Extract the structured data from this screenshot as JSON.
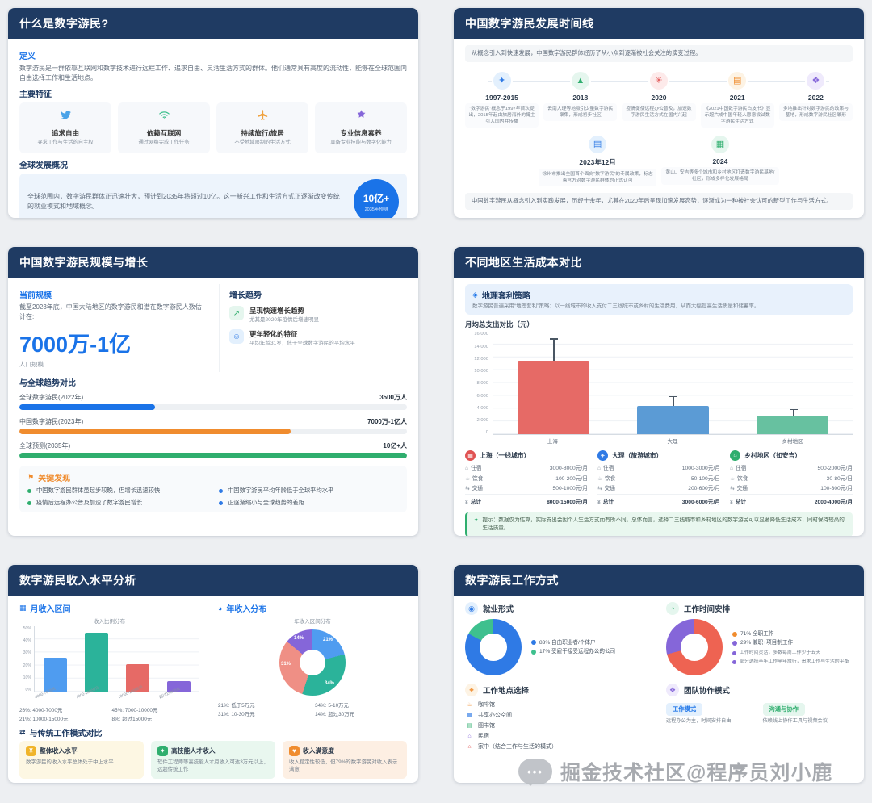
{
  "watermark": {
    "text": "掘金技术社区@程序员刘小鹿"
  },
  "panel_what": {
    "title": "什么是数字游民?",
    "definition_label": "定义",
    "definition_text": "数字游民是一群依靠互联网和数字技术进行远程工作、追求自由、灵活生活方式的群体。他们通常具有高度的流动性，能够在全球范围内自由选择工作和生活地点。",
    "features_label": "主要特征",
    "features": [
      {
        "title": "追求自由",
        "desc": "寻求工作与生活的自主权"
      },
      {
        "title": "依赖互联网",
        "desc": "通过网络完成工作任务"
      },
      {
        "title": "持续旅行/旅居",
        "desc": "不受地域限制的生活方式"
      },
      {
        "title": "专业信息素养",
        "desc": "具备专业技能与数字化能力"
      }
    ],
    "global_label": "全球发展概况",
    "global_text": "全球范围内，数字游民群体正迅速壮大，预计到2035年将超过10亿。这一新兴工作和生活方式正逐渐改变传统的就业模式和地域概念。",
    "badge_value": "10亿+",
    "badge_caption": "2035年预测"
  },
  "panel_timeline": {
    "title": "中国数字游民发展时间线",
    "intro": "从概念引入到快速发展，中国数字游民群体经历了从小众到逐渐被社会关注的演变过程。",
    "events": [
      {
        "year": "1997-2015",
        "desc": "“数字游民”概念于1997年首次提出，2015年起由旅居海外的博主引入国内并传播"
      },
      {
        "year": "2018",
        "desc": "云南大理等地吸引少量数字游民聚集，形成初步社区"
      },
      {
        "year": "2020",
        "desc": "疫情促使远程办公普及，加速数字游民生活方式在国内兴起"
      },
      {
        "year": "2021",
        "desc": "《2021中国数字游民白皮书》显示超六成中国年轻人愿意尝试数字游民生活方式"
      },
      {
        "year": "2022",
        "desc": "多地推出针对数字游民的政策与基地，形成数字游民社区雏形"
      }
    ],
    "events2": [
      {
        "year": "2023年12月",
        "desc": "徐州市推出全国首个面向“数字游民”的专属政策，标志着官方对数字游民群体的正式认可"
      },
      {
        "year": "2024",
        "desc": "黄山、安吉等多个城市和乡村地区打造数字游民基地/社区，形成多样化发展格局"
      }
    ],
    "summary": "中国数字游民从概念引入到实践发展，历经十余年，尤其在2020年后呈现加速发展态势，逐渐成为一种被社会认可的新型工作与生活方式。"
  },
  "panel_scale": {
    "title": "中国数字游民规模与增长",
    "current_label": "当前规模",
    "current_text": "截至2023年底，中国大陆地区的数字游民和潜在数字游民人数估计在:",
    "big_number": "7000万-1亿",
    "big_caption": "人口规模",
    "growth_label": "增长趋势",
    "growth_items": [
      {
        "title": "呈现快速增长趋势",
        "desc": "尤其是2020年疫情后增速明显"
      },
      {
        "title": "更年轻化的特征",
        "desc": "平均年龄31岁，低于全球数字游民的平均水平"
      }
    ],
    "compare_label": "与全球趋势对比",
    "findings_label": "关键发现",
    "findings": [
      "中国数字游民群体虽起步较晚，但增长迅速较快",
      "中国数字游民平均年龄低于全球平均水平",
      "疫情后远程办公普及加速了数字游民增长",
      "正逐渐缩小与全球趋势的差距"
    ]
  },
  "panel_cost": {
    "title": "不同地区生活成本对比",
    "strategy_label": "地理套利策略",
    "strategy_text": "数字游民普遍采用“地理套利”策略：以一线城市的收入支付二三线城市或乡村的生活费用，从而大幅提高生活质量和储蓄率。",
    "cities": [
      {
        "name": "上海（一线城市）",
        "rows": [
          [
            "住宿",
            "3000-8000元/月"
          ],
          [
            "饮食",
            "100-200元/日"
          ],
          [
            "交通",
            "500-1000元/月"
          ],
          [
            "总计",
            "8000-15000元/月"
          ]
        ]
      },
      {
        "name": "大理（旅游城市）",
        "rows": [
          [
            "住宿",
            "1000-3000元/月"
          ],
          [
            "饮食",
            "50-100元/日"
          ],
          [
            "交通",
            "200-600元/月"
          ],
          [
            "总计",
            "3000-6000元/月"
          ]
        ]
      },
      {
        "name": "乡村地区（如安吉）",
        "rows": [
          [
            "住宿",
            "500-2000元/月"
          ],
          [
            "饮食",
            "30-80元/日"
          ],
          [
            "交通",
            "100-300元/月"
          ],
          [
            "总计",
            "2000-4000元/月"
          ]
        ]
      }
    ],
    "tip": "提示：数据仅为估算，实际支出会因个人生活方式而有所不同。总体而言，选择二三线城市和乡村地区的数字游民可以显著降低生活成本，同时保持较高的生活质量。"
  },
  "panel_income": {
    "title": "数字游民收入水平分析",
    "monthly_label": "月收入区间",
    "monthly_legend": [
      "26%: 4000-7000元",
      "45%: 7000-10000元",
      "21%: 10000-15000元",
      "8%: 超过15000元"
    ],
    "annual_label": "年收入分布",
    "annual_legend": [
      "21%: 低于5万元",
      "34%: 5-10万元",
      "31%: 10-30万元",
      "14%: 超过30万元"
    ],
    "compare_label": "与传统工作模式对比",
    "compare_cards": [
      {
        "title": "整体收入水平",
        "desc": "数字游民的收入水平总体处于中上水平"
      },
      {
        "title": "高技能人才收入",
        "desc": "软件工程师等高技能人才月收入可达3万元以上，远超传统工作"
      },
      {
        "title": "收入满意度",
        "desc": "收入稳定性较低，但79%的数字游民对收入表示满意"
      }
    ]
  },
  "panel_work": {
    "title": "数字游民工作方式",
    "employment_label": "就业形式",
    "employment_legend": [
      "83% 自由职业者/个体户",
      "17% 受雇于接受远程办公的公司"
    ],
    "time_label": "工作时间安排",
    "time_legend": [
      "71% 全职工作",
      "29% 兼职+项目制工作"
    ],
    "time_notes": [
      "工作时间灵活，多数每周工作少于五天",
      "部分选择半年工作半年旅行，追求工作与生活的平衡"
    ],
    "location_label": "工作地点选择",
    "locations": [
      "咖啡馆",
      "共享办公空间",
      "图书馆",
      "民宿",
      "家中（结合工作与生活的模式）"
    ],
    "team_label": "团队协作模式",
    "team_items": [
      {
        "tag": "工作模式",
        "desc": "远程办公为主，时间安排自由"
      },
      {
        "tag": "沟通与协作",
        "desc": "依赖线上协作工具与视频会议"
      }
    ]
  },
  "chart_data": [
    {
      "type": "bar",
      "orientation": "horizontal",
      "title": "与全球趋势对比",
      "categories": [
        "全球数字游民(2022年)",
        "中国数字游民(2023年)",
        "全球预测(2035年)"
      ],
      "values_text": [
        "3500万人",
        "7000万-1亿人",
        "10亿+人"
      ],
      "pct": [
        35,
        70,
        100
      ],
      "colors": [
        "#1a73e8",
        "#f08c2e",
        "#2fae6e"
      ]
    },
    {
      "type": "bar",
      "title": "月均总支出对比（元）",
      "categories": [
        "上海",
        "大理",
        "乡村地区"
      ],
      "values": [
        11500,
        4500,
        3000
      ],
      "error_high": [
        15000,
        6000,
        4000
      ],
      "ylim": [
        0,
        16000
      ],
      "ylabel": "元",
      "colors": [
        "#e66a66",
        "#5b9bd5",
        "#67c1a0"
      ],
      "y_ticks": [
        "16,000",
        "14,000",
        "12,000",
        "10,000",
        "8,000",
        "6,000",
        "4,000",
        "2,000",
        "0"
      ]
    },
    {
      "type": "bar",
      "title": "收入比例分布",
      "categories": [
        "4000-7000元",
        "7000-10000元",
        "10000-15000元",
        "超过15000元"
      ],
      "values": [
        26,
        45,
        21,
        8
      ],
      "ylim": [
        0,
        50
      ],
      "ylabel": "%",
      "colors": [
        "#4f9cf0",
        "#2bb39a",
        "#e66a66",
        "#8566d9"
      ],
      "y_ticks": [
        "50%",
        "40%",
        "30%",
        "20%",
        "10%",
        "0%"
      ]
    },
    {
      "type": "pie",
      "title": "年收入区间分布",
      "labels": [
        "低于5万元",
        "5-10万元",
        "10-30万元",
        "超过30万元"
      ],
      "values": [
        21,
        34,
        31,
        14
      ],
      "labels_pct": [
        "21%",
        "34%",
        "31%",
        "14%"
      ],
      "colors": [
        "#4f9cf0",
        "#2bb39a",
        "#ef8f85",
        "#8566d9"
      ]
    },
    {
      "type": "pie",
      "title": "就业形式",
      "labels": [
        "自由职业者/个体户",
        "受雇于接受远程办公的公司"
      ],
      "values": [
        83,
        17
      ],
      "colors": [
        "#2f7ae5",
        "#3ec08e"
      ]
    },
    {
      "type": "pie",
      "title": "工作时间安排",
      "labels": [
        "全职工作",
        "兼职+项目制工作"
      ],
      "values": [
        71,
        29
      ],
      "colors": [
        "#ee6352",
        "#8566d9"
      ]
    }
  ]
}
